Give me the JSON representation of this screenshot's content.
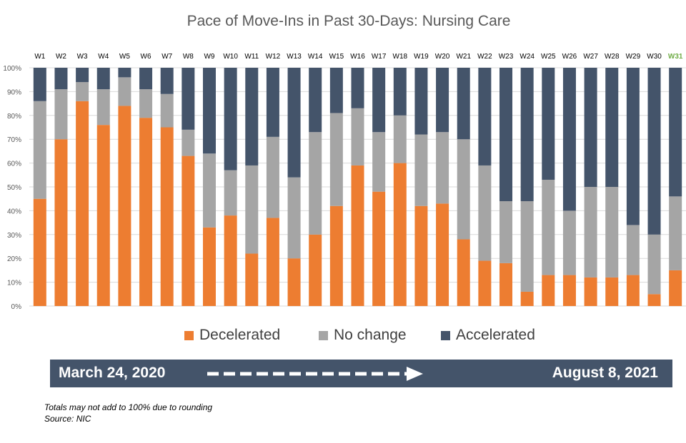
{
  "chart_data": {
    "type": "bar",
    "stacked": true,
    "title": "Pace of Move-Ins in Past 30-Days: Nursing Care",
    "categories": [
      "W1",
      "W2",
      "W3",
      "W4",
      "W5",
      "W6",
      "W7",
      "W8",
      "W9",
      "W10",
      "W11",
      "W12",
      "W13",
      "W14",
      "W15",
      "W16",
      "W17",
      "W18",
      "W19",
      "W20",
      "W21",
      "W22",
      "W23",
      "W24",
      "W25",
      "W26",
      "W27",
      "W28",
      "W29",
      "W30",
      "W31"
    ],
    "highlight_category": "W31",
    "y_ticks": [
      "0%",
      "10%",
      "20%",
      "30%",
      "40%",
      "50%",
      "60%",
      "70%",
      "80%",
      "90%",
      "100%"
    ],
    "ylim": [
      0,
      100
    ],
    "grid": true,
    "legend_position": "bottom",
    "series": [
      {
        "name": "Decelerated",
        "color": "#ed7d31",
        "values": [
          45,
          70,
          86,
          76,
          84,
          79,
          75,
          63,
          33,
          38,
          22,
          37,
          20,
          30,
          42,
          59,
          48,
          60,
          42,
          43,
          28,
          19,
          18,
          6,
          13,
          13,
          12,
          12,
          13,
          5,
          15
        ]
      },
      {
        "name": "No change",
        "color": "#a5a5a5",
        "values": [
          41,
          21,
          8,
          15,
          12,
          12,
          14,
          11,
          31,
          19,
          37,
          34,
          34,
          43,
          39,
          24,
          25,
          20,
          30,
          30,
          42,
          40,
          26,
          38,
          40,
          27,
          38,
          38,
          21,
          25,
          31
        ]
      },
      {
        "name": "Accelerated",
        "color": "#44546a",
        "values": [
          14,
          9,
          6,
          9,
          4,
          9,
          11,
          26,
          36,
          43,
          41,
          29,
          46,
          27,
          19,
          17,
          27,
          20,
          28,
          27,
          30,
          41,
          56,
          56,
          47,
          60,
          50,
          50,
          66,
          70,
          54
        ]
      }
    ]
  },
  "colors": {
    "highlight_label": "#70ad47",
    "axis_label": "#595959",
    "grid": "#d9d9d9",
    "banner": "#44546a"
  },
  "banner": {
    "start_label": "March 24, 2020",
    "end_label": "August 8, 2021",
    "arrow_icon": "dashed-right-arrow-icon"
  },
  "notes": {
    "line1": "Totals may not add to 100% due to rounding",
    "line2": "Source: NIC"
  }
}
